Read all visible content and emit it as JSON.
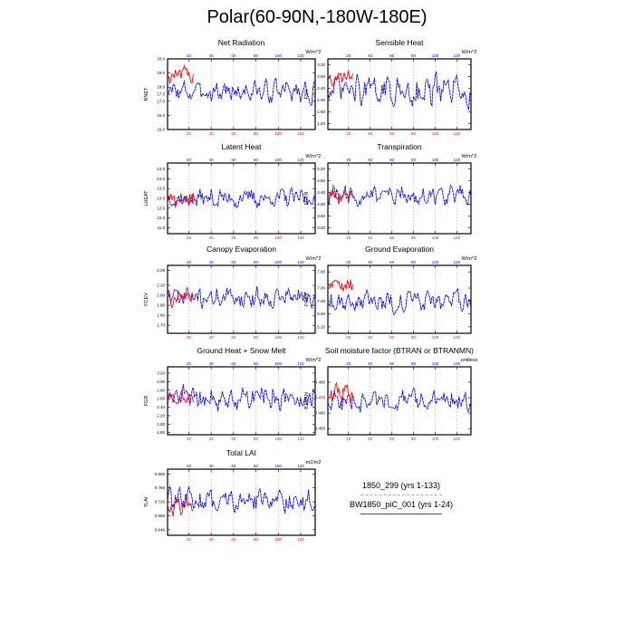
{
  "title": "Polar(60-90N,-180W-180E)",
  "legend": [
    {
      "label": "1850_299 (yrs 1-133)",
      "color": "#a9a9b8",
      "dash": true
    },
    {
      "label": "BW1850_piC_001 (yrs 1-24)",
      "color": "#ff0000",
      "dash": false
    }
  ],
  "colors": {
    "series_main": "#0000ff",
    "series_short": "#ff0000"
  },
  "chart_data": [
    {
      "type": "line",
      "title": "Net Radiation",
      "ylabel": "RNET",
      "units": "W/m^2",
      "ylim": [
        15.0,
        20.0
      ],
      "yticks": [
        15.0,
        16.0,
        17.0,
        17.5,
        18.0,
        19.0,
        20.0
      ],
      "xlim": [
        1,
        133
      ],
      "xticks_top": [
        20,
        40,
        60,
        80,
        100,
        120
      ],
      "xticks_bottom": [
        20,
        40,
        60,
        80,
        100,
        120
      ],
      "series": [
        {
          "x": [
            1,
            133
          ],
          "mean": 17.7,
          "amp": 0.9
        },
        {
          "x": [
            1,
            24
          ],
          "mean": 18.8,
          "amp": 0.7
        }
      ]
    },
    {
      "type": "line",
      "title": "Sensible Heat",
      "ylabel": "FSH",
      "units": "W/m^2",
      "ylim": [
        1.0,
        3.4
      ],
      "yticks": [
        1.2,
        1.6,
        2.0,
        2.4,
        2.8,
        3.2
      ],
      "xlim": [
        1,
        133
      ],
      "xticks_top": [
        20,
        40,
        60,
        80,
        100,
        120
      ],
      "xticks_bottom": [
        20,
        40,
        60,
        80,
        100,
        120
      ],
      "series": [
        {
          "x": [
            1,
            133
          ],
          "mean": 2.3,
          "amp": 0.6
        },
        {
          "x": [
            1,
            24
          ],
          "mean": 2.8,
          "amp": 0.3
        }
      ]
    },
    {
      "type": "line",
      "title": "Latent Heat",
      "ylabel": "LHEAT",
      "units": "W/m^2",
      "ylim": [
        11.2,
        14.8
      ],
      "yticks": [
        11.5,
        12.0,
        12.5,
        13.0,
        13.5,
        14.0,
        14.5
      ],
      "xlim": [
        1,
        133
      ],
      "xticks_top": [
        20,
        40,
        60,
        80,
        100,
        120
      ],
      "xticks_bottom": [
        20,
        40,
        60,
        80,
        100,
        120
      ],
      "series": [
        {
          "x": [
            1,
            133
          ],
          "mean": 13.0,
          "amp": 0.6
        },
        {
          "x": [
            1,
            24
          ],
          "mean": 12.9,
          "amp": 0.6
        }
      ]
    },
    {
      "type": "line",
      "title": "Transpiration",
      "ylabel": "FCTR",
      "units": "W/m^2",
      "ylim": [
        3.0,
        5.4
      ],
      "yticks": [
        3.2,
        3.6,
        4.0,
        4.4,
        4.8,
        5.2
      ],
      "xlim": [
        1,
        133
      ],
      "xticks_top": [
        20,
        40,
        60,
        80,
        100,
        120
      ],
      "xticks_bottom": [
        20,
        40,
        60,
        80,
        100,
        120
      ],
      "series": [
        {
          "x": [
            1,
            133
          ],
          "mean": 4.3,
          "amp": 0.4
        },
        {
          "x": [
            1,
            24
          ],
          "mean": 4.3,
          "amp": 0.4
        }
      ]
    },
    {
      "type": "line",
      "title": "Canopy Evaporation",
      "ylabel": "FCEV",
      "units": "W/m^2",
      "ylim": [
        1.62,
        2.3
      ],
      "yticks": [
        1.7,
        1.8,
        1.9,
        2.0,
        2.1,
        2.25
      ],
      "xlim": [
        1,
        133
      ],
      "xticks_top": [
        20,
        40,
        60,
        80,
        100,
        120
      ],
      "xticks_bottom": [
        20,
        40,
        60,
        80,
        100,
        120
      ],
      "series": [
        {
          "x": [
            1,
            133
          ],
          "mean": 1.98,
          "amp": 0.12
        },
        {
          "x": [
            1,
            24
          ],
          "mean": 2.0,
          "amp": 0.12
        }
      ]
    },
    {
      "type": "line",
      "title": "Ground Evaporation",
      "ylabel": "FGEV",
      "units": "W/m^2",
      "ylim": [
        6.0,
        8.1
      ],
      "yticks": [
        6.2,
        6.6,
        7.0,
        7.4,
        7.9
      ],
      "xlim": [
        1,
        133
      ],
      "xticks_top": [
        20,
        40,
        60,
        80,
        100,
        120
      ],
      "xticks_bottom": [
        20,
        40,
        60,
        80,
        100,
        120
      ],
      "series": [
        {
          "x": [
            1,
            133
          ],
          "mean": 7.0,
          "amp": 0.4
        },
        {
          "x": [
            1,
            24
          ],
          "mean": 7.5,
          "amp": 0.35
        }
      ]
    },
    {
      "type": "line",
      "title": "Ground Heat + Snow Melt",
      "ylabel": "FGR",
      "units": "W/m^2",
      "ylim": [
        1.75,
        3.35
      ],
      "yticks": [
        1.8,
        2.0,
        2.2,
        2.4,
        2.6,
        2.8,
        3.0,
        3.2
      ],
      "xlim": [
        1,
        133
      ],
      "xticks_top": [
        20,
        40,
        60,
        80,
        100,
        120
      ],
      "xticks_bottom": [
        20,
        40,
        60,
        80,
        100,
        120
      ],
      "series": [
        {
          "x": [
            1,
            133
          ],
          "mean": 2.6,
          "amp": 0.35
        },
        {
          "x": [
            1,
            24
          ],
          "mean": 2.6,
          "amp": 0.2
        }
      ]
    },
    {
      "type": "line",
      "title": "Soil moisture factor (BTRAN or BTRANMN)",
      "ylabel": "BTRAN",
      "units": "unitless",
      "ylim": [
        0.446,
        0.49
      ],
      "yticks": [
        0.45,
        0.46,
        0.47,
        0.48
      ],
      "xlim": [
        1,
        133
      ],
      "xticks_top": [
        20,
        40,
        60,
        80,
        100,
        120
      ],
      "xticks_bottom": [
        20,
        40,
        60,
        80,
        100,
        120
      ],
      "series": [
        {
          "x": [
            1,
            133
          ],
          "mean": 0.468,
          "amp": 0.008
        },
        {
          "x": [
            1,
            24
          ],
          "mean": 0.472,
          "amp": 0.008
        }
      ]
    },
    {
      "type": "line",
      "title": "Total LAI",
      "ylabel": "TLAI",
      "units": "m2/m2",
      "ylim": [
        0.63,
        0.82
      ],
      "yticks": [
        0.646,
        0.686,
        0.726,
        0.766,
        0.806
      ],
      "xlim": [
        1,
        133
      ],
      "xticks_top": [
        20,
        40,
        60,
        80,
        100,
        120
      ],
      "xticks_bottom": [
        20,
        40,
        60,
        80,
        100,
        120
      ],
      "series": [
        {
          "x": [
            1,
            133
          ],
          "mean": 0.73,
          "amp": 0.04
        },
        {
          "x": [
            1,
            24
          ],
          "mean": 0.72,
          "amp": 0.04
        }
      ]
    }
  ]
}
